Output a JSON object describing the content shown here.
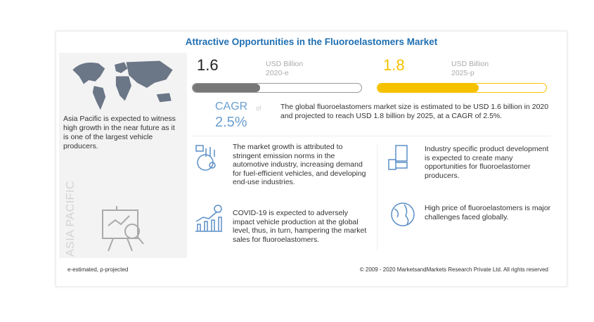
{
  "title": "Attractive Opportunities in the Fluoroelastomers Market",
  "left_panel": {
    "text": "Asia Pacific is expected to witness high growth in the near future as it is one of the largest vehicle producers.",
    "region_label": "ASIA PACIFIC"
  },
  "market_2020": {
    "value": "1.6",
    "unit": "USD Billion",
    "year": "2020-e",
    "progress_percent": 40
  },
  "market_2025": {
    "value": "1.8",
    "unit": "USD Billion",
    "year": "2025-p",
    "progress_percent": 60
  },
  "cagr": {
    "label": "CAGR",
    "of": "of",
    "value": "2.5%",
    "description": "The global fluoroelastomers market size is estimated to be USD 1.6 billion in 2020 and projected to reach USD 1.8 billion by 2025, at a CAGR of 2.5%."
  },
  "insights": [
    {
      "icon": "market-growth-icon",
      "text": "The market growth is attributed to stringent emission norms in the automotive industry, increasing demand for fuel-efficient vehicles, and developing end-use industries."
    },
    {
      "icon": "product-development-icon",
      "text": "Industry specific product development is expected to create many opportunities for fluoroelastomer producers."
    },
    {
      "icon": "covid-chart-icon",
      "text": "COVID-19 is expected to adversely impact vehicle production at the global level, thus, in turn, hampering the market sales for fluoroelastomers."
    },
    {
      "icon": "globe-icon",
      "text": "High price of fluoroelastomers is major challenges faced globally."
    }
  ],
  "footer": {
    "note": "e-estimated, p-projected",
    "copyright": "© 2009 - 2020 MarketsandMarkets Research Private Ltd. All rights reserved"
  },
  "colors": {
    "title": "#1f6fb2",
    "yellow": "#f6c200",
    "gray": "#777777",
    "cagr": "#6a9fd0"
  }
}
